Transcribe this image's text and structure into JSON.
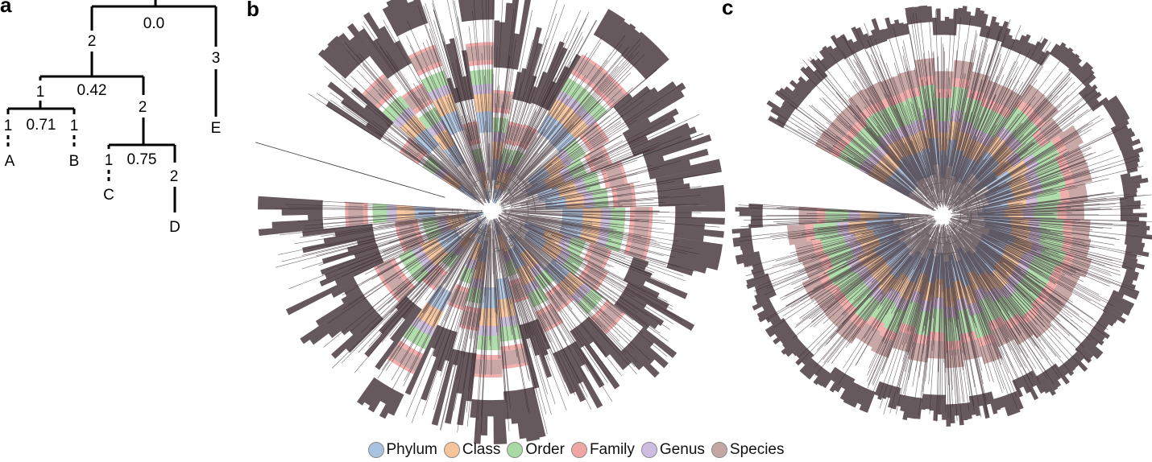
{
  "panels": {
    "a": {
      "letter": "a",
      "root_label": "0.0",
      "node_labels": {
        "n_left_top": "2",
        "n_right_top": "3",
        "n_ab": "1",
        "n_cd": "2",
        "mid_abcd": "0.42",
        "n_a": "1",
        "n_b": "1",
        "mid_ab": "0.71",
        "n_c": "1",
        "n_d": "2",
        "mid_cd": "0.75"
      },
      "leaves": {
        "A": "A",
        "B": "B",
        "C": "C",
        "D": "D",
        "E": "E"
      }
    },
    "b": {
      "letter": "b"
    },
    "c": {
      "letter": "c"
    }
  },
  "legend": [
    {
      "label": "Phylum",
      "color": "#a9c2de"
    },
    {
      "label": "Class",
      "color": "#f6c499"
    },
    {
      "label": "Order",
      "color": "#a9d9a4"
    },
    {
      "label": "Family",
      "color": "#f0a6a4"
    },
    {
      "label": "Genus",
      "color": "#cdbde0"
    },
    {
      "label": "Species",
      "color": "#c2a7a5"
    }
  ],
  "colors": {
    "branch": "#3b2a30",
    "ring_order": [
      "Phylum",
      "Class",
      "Order",
      "Family",
      "Genus",
      "Species"
    ]
  }
}
